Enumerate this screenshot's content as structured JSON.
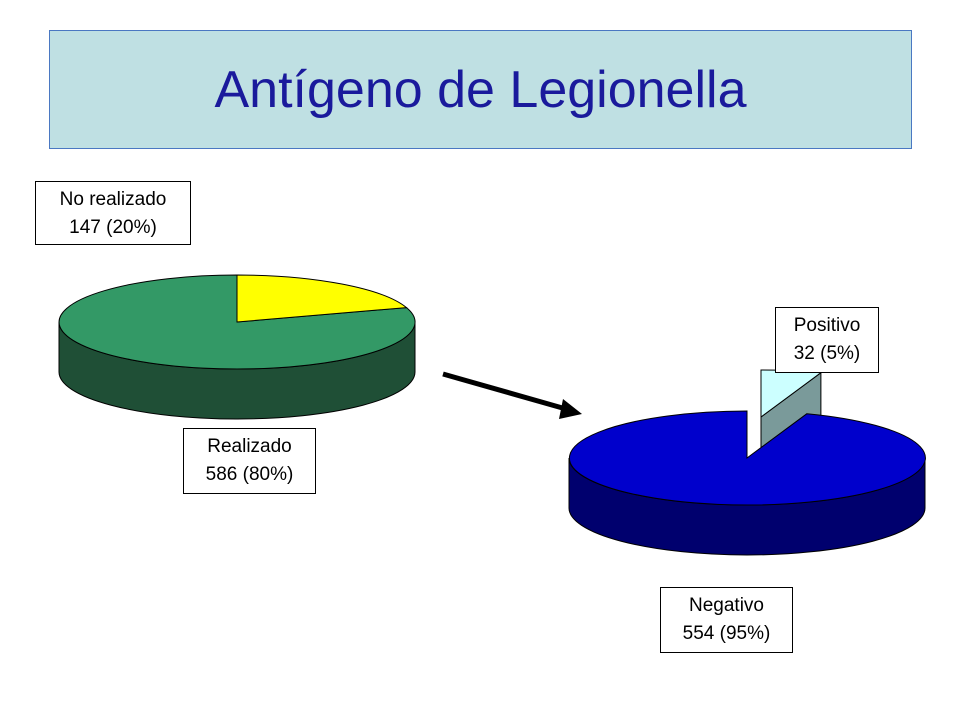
{
  "title": "Antígeno de Legionella",
  "chart_data": [
    {
      "type": "pie",
      "style": "3d",
      "slices": [
        {
          "name": "Realizado",
          "value": 586,
          "percent": 80,
          "label": "Realizado",
          "value_label": "586 (80%)",
          "color": "#339966",
          "side_color": "#1f4f36"
        },
        {
          "name": "No realizado",
          "value": 147,
          "percent": 20,
          "label": "No realizado",
          "value_label": "147 (20%)",
          "color": "#ffff00",
          "side_color": "#a8a800"
        }
      ]
    },
    {
      "type": "pie",
      "style": "3d",
      "slices": [
        {
          "name": "Negativo",
          "value": 554,
          "percent": 95,
          "label": "Negativo",
          "value_label": "554 (95%)",
          "color": "#0000cc",
          "side_color": "#00006e"
        },
        {
          "name": "Positivo",
          "value": 32,
          "percent": 5,
          "label": "Positivo",
          "value_label": "32 (5%)",
          "color": "#ccffff",
          "side_color": "#7a9a9a",
          "exploded": true
        }
      ]
    }
  ]
}
